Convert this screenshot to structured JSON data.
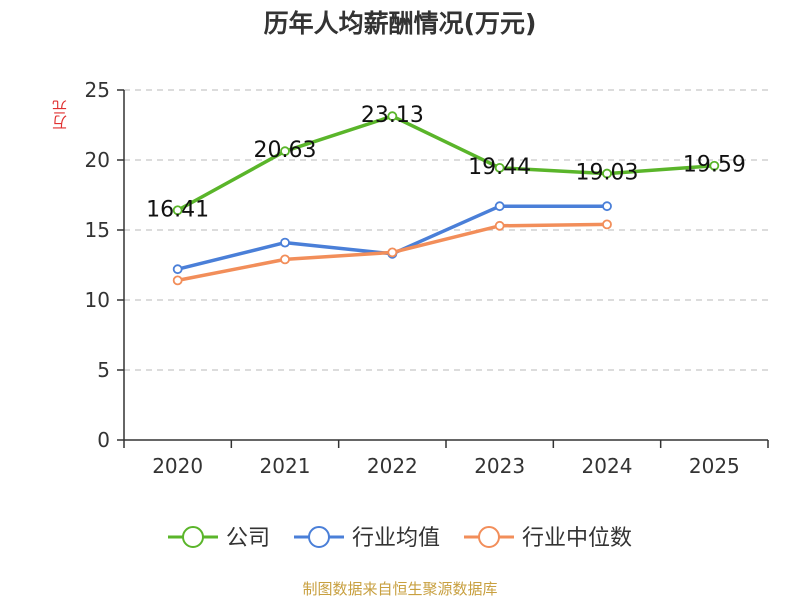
{
  "title": "历年人均薪酬情况(万元)",
  "source": "制图数据来自恒生聚源数据库",
  "chart_data": {
    "type": "line",
    "title": "历年人均薪酬情况(万元)",
    "ylabel": "万元",
    "xlabel": "",
    "categories": [
      "2020",
      "2021",
      "2022",
      "2023",
      "2024",
      "2025"
    ],
    "ylim": [
      0,
      25
    ],
    "yticks": [
      0,
      5,
      10,
      15,
      20,
      25
    ],
    "grid": true,
    "legend_position": "bottom",
    "series": [
      {
        "name": "公司",
        "color": "#5ab52a",
        "values": [
          16.41,
          20.63,
          23.13,
          19.44,
          19.03,
          19.59
        ],
        "show_labels": true
      },
      {
        "name": "行业均值",
        "color": "#4a7fd8",
        "values": [
          12.2,
          14.1,
          13.3,
          16.7,
          16.7,
          null
        ],
        "show_labels": false
      },
      {
        "name": "行业中位数",
        "color": "#f28e5a",
        "values": [
          11.4,
          12.9,
          13.4,
          15.3,
          15.4,
          null
        ],
        "show_labels": false
      }
    ]
  }
}
